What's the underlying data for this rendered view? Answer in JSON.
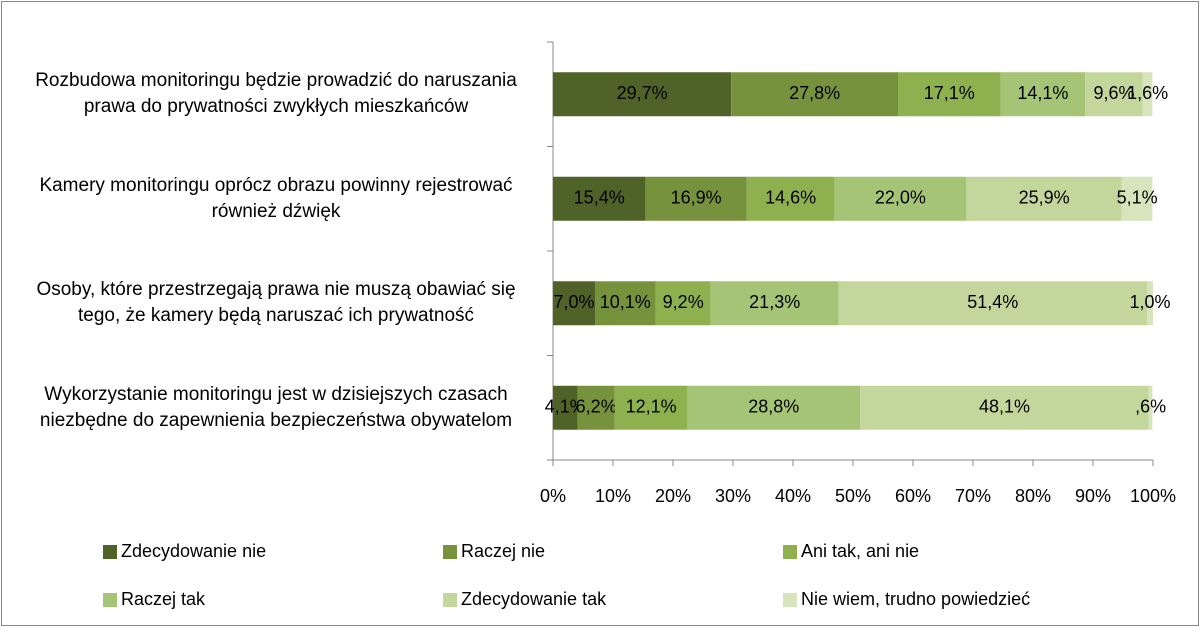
{
  "chart_data": {
    "type": "stacked_barh",
    "categories": [
      "Rozbudowa monitoringu będzie prowadzić do naruszania prawa do prywatności zwykłych mieszkańców",
      "Kamery monitoringu oprócz obrazu powinny rejestrować również dźwięk",
      "Osoby, które przestrzegają prawa nie muszą obawiać się tego, że kamery będą naruszać ich prywatność",
      "Wykorzystanie monitoringu jest w dzisiejszych czasach niezbędne do zapewnienia bezpieczeństwa obywatelom"
    ],
    "series": [
      {
        "name": "Zdecydowanie nie",
        "color": "#4f6228",
        "values": [
          29.7,
          15.4,
          7.0,
          4.1
        ],
        "value_labels": [
          "29,7%",
          "15,4%",
          "7,0%",
          "4,1%"
        ]
      },
      {
        "name": "Raczej nie",
        "color": "#76923c",
        "values": [
          27.8,
          16.9,
          10.1,
          6.2
        ],
        "value_labels": [
          "27,8%",
          "16,9%",
          "10,1%",
          "6,2%"
        ]
      },
      {
        "name": "Ani tak, ani nie",
        "color": "#8eb04e",
        "values": [
          17.1,
          14.6,
          9.2,
          12.1
        ],
        "value_labels": [
          "17,1%",
          "14,6%",
          "9,2%",
          "12,1%"
        ]
      },
      {
        "name": "Raczej tak",
        "color": "#a6c476",
        "values": [
          14.1,
          22.0,
          21.3,
          28.8
        ],
        "value_labels": [
          "14,1%",
          "22,0%",
          "21,3%",
          "28,8%"
        ]
      },
      {
        "name": "Zdecydowanie tak",
        "color": "#c3d69b",
        "values": [
          9.6,
          25.9,
          51.4,
          48.1
        ],
        "value_labels": [
          "9,6%",
          "25,9%",
          "51,4%",
          "48,1%"
        ]
      },
      {
        "name": "Nie wiem, trudno powiedzieć",
        "color": "#d8e4bc",
        "values": [
          1.6,
          5.1,
          1.0,
          0.6
        ],
        "value_labels": [
          "1,6%",
          "5,1%",
          "1,0%",
          ",6%"
        ]
      }
    ],
    "xlim": [
      0,
      100
    ],
    "xticks": [
      {
        "value": 0,
        "label": "0%"
      },
      {
        "value": 10,
        "label": "10%"
      },
      {
        "value": 20,
        "label": "20%"
      },
      {
        "value": 30,
        "label": "30%"
      },
      {
        "value": 40,
        "label": "40%"
      },
      {
        "value": 50,
        "label": "50%"
      },
      {
        "value": 60,
        "label": "60%"
      },
      {
        "value": 70,
        "label": "70%"
      },
      {
        "value": 80,
        "label": "80%"
      },
      {
        "value": 90,
        "label": "90%"
      },
      {
        "value": 100,
        "label": "100%"
      }
    ],
    "legend": "bottom"
  }
}
